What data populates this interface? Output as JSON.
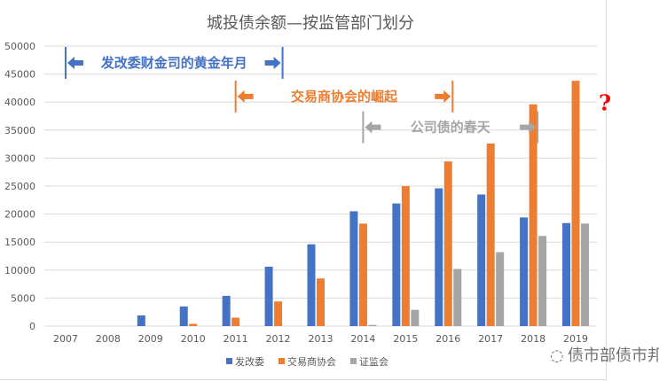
{
  "chart_data": {
    "type": "bar",
    "title": "城投债余额—按监管部门划分",
    "categories": [
      "2007",
      "2008",
      "2009",
      "2010",
      "2011",
      "2012",
      "2013",
      "2014",
      "2015",
      "2016",
      "2017",
      "2018",
      "2019"
    ],
    "series": [
      {
        "name": "发改委",
        "color": "#4472c4",
        "values": [
          0,
          0,
          1900,
          3500,
          5400,
          10600,
          14600,
          20500,
          21900,
          24600,
          23500,
          19400,
          18400
        ]
      },
      {
        "name": "交易商协会",
        "color": "#ed7d31",
        "values": [
          0,
          0,
          0,
          400,
          1500,
          4400,
          8500,
          18300,
          25000,
          29400,
          32600,
          39600,
          43800
        ]
      },
      {
        "name": "证监会",
        "color": "#a5a5a5",
        "values": [
          0,
          0,
          0,
          0,
          0,
          0,
          0,
          200,
          2900,
          10200,
          13200,
          16100,
          18300
        ]
      }
    ],
    "ylim": [
      0,
      50000
    ],
    "yticks": [
      "0",
      "5000",
      "10000",
      "15000",
      "20000",
      "25000",
      "30000",
      "35000",
      "40000",
      "45000",
      "50000"
    ],
    "grid": true,
    "legend": "bottom",
    "annotations": [
      {
        "text": "发改委财金司的黄金年月",
        "color": "#4472c4",
        "from": "2007",
        "to": "2012",
        "level": 47000
      },
      {
        "text": "交易商协会的崛起",
        "color": "#ed7d31",
        "from": "2011",
        "to": "2016",
        "level": 41000
      },
      {
        "text": "公司债的春天",
        "color": "#a5a5a5",
        "from": "2014",
        "to": "2018",
        "level": 35500
      },
      {
        "text": "?",
        "color": "#ff0000",
        "at": "2019",
        "level": 38500
      }
    ]
  },
  "watermark": "债市部债市邦"
}
